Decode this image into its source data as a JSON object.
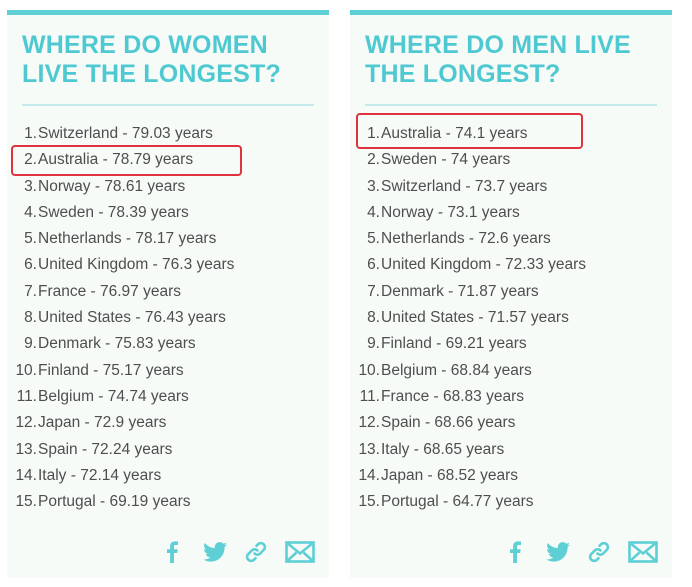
{
  "colors": {
    "accent": "#4fc9d1",
    "card_background": "#f6fbf8",
    "text": "#4e4e4e",
    "highlight": "#e0323c"
  },
  "share_icons": [
    "facebook-icon",
    "twitter-icon",
    "link-icon",
    "mail-icon"
  ],
  "women": {
    "title": "WHERE DO WOMEN LIVE THE LONGEST?",
    "ranks": [
      {
        "num": "1.",
        "text": "Switzerland - 79.03 years"
      },
      {
        "num": "2.",
        "text": "Australia - 78.79 years"
      },
      {
        "num": "3.",
        "text": "Norway - 78.61 years"
      },
      {
        "num": "4.",
        "text": "Sweden - 78.39 years"
      },
      {
        "num": "5.",
        "text": "Netherlands - 78.17 years"
      },
      {
        "num": "6.",
        "text": "United Kingdom - 76.3 years"
      },
      {
        "num": "7.",
        "text": "France - 76.97 years"
      },
      {
        "num": "8.",
        "text": "United States - 76.43 years"
      },
      {
        "num": "9.",
        "text": "Denmark - 75.83 years"
      },
      {
        "num": "10.",
        "text": "Finland - 75.17 years"
      },
      {
        "num": "11.",
        "text": "Belgium - 74.74 years"
      },
      {
        "num": "12.",
        "text": "Japan - 72.9 years"
      },
      {
        "num": "13.",
        "text": "Spain - 72.24 years"
      },
      {
        "num": "14.",
        "text": "Italy - 72.14 years"
      },
      {
        "num": "15.",
        "text": "Portugal - 69.19 years"
      }
    ]
  },
  "men": {
    "title": "WHERE DO MEN LIVE THE LONGEST?",
    "ranks": [
      {
        "num": "1.",
        "text": "Australia - 74.1 years"
      },
      {
        "num": "2.",
        "text": "Sweden - 74 years"
      },
      {
        "num": "3.",
        "text": "Switzerland - 73.7 years"
      },
      {
        "num": "4.",
        "text": "Norway - 73.1 years"
      },
      {
        "num": "5.",
        "text": "Netherlands - 72.6 years"
      },
      {
        "num": "6.",
        "text": "United Kingdom - 72.33 years"
      },
      {
        "num": "7.",
        "text": "Denmark - 71.87 years"
      },
      {
        "num": "8.",
        "text": "United States - 71.57 years"
      },
      {
        "num": "9.",
        "text": "Finland - 69.21 years"
      },
      {
        "num": "10.",
        "text": "Belgium - 68.84 years"
      },
      {
        "num": "11.",
        "text": "France - 68.83 years"
      },
      {
        "num": "12.",
        "text": "Spain - 68.66 years"
      },
      {
        "num": "13.",
        "text": "Italy - 68.65 years"
      },
      {
        "num": "14.",
        "text": "Japan - 68.52 years"
      },
      {
        "num": "15.",
        "text": "Portugal - 64.77 years"
      }
    ]
  }
}
